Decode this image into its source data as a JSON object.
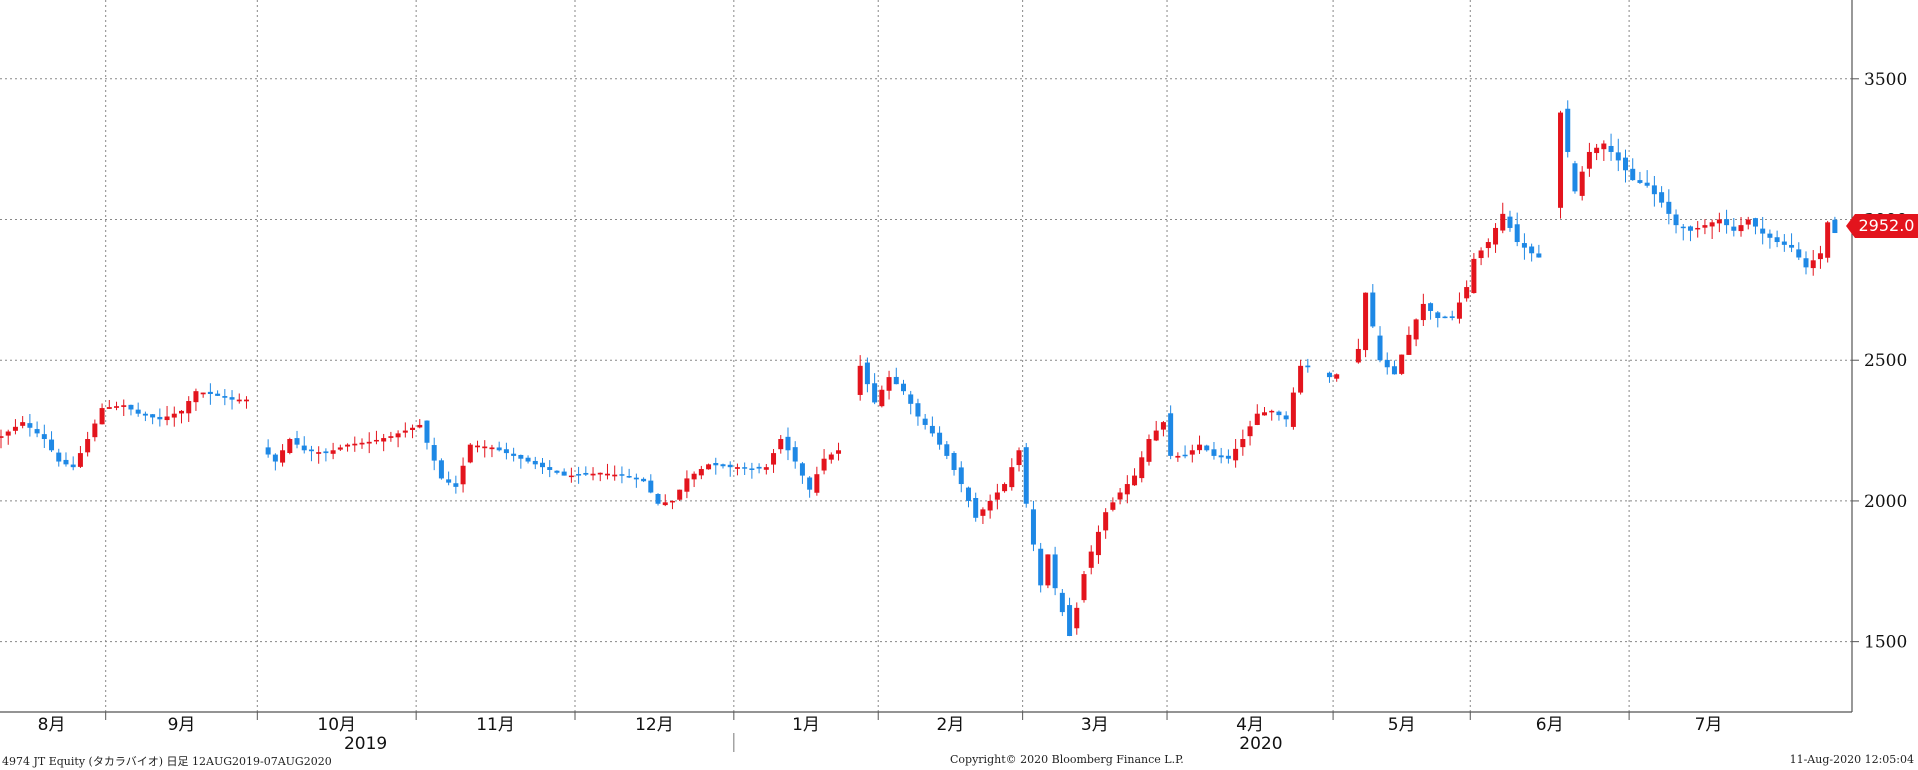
{
  "chart_data": {
    "type": "candlestick",
    "ylim": [
      1250,
      3780
    ],
    "y_ticks": [
      1500,
      2000,
      2500,
      3000,
      3500
    ],
    "x_month_labels": [
      "8月",
      "9月",
      "10月",
      "11月",
      "12月",
      "1月",
      "2月",
      "3月",
      "4月",
      "5月",
      "6月",
      "7月"
    ],
    "x_year_labels": [
      "2019",
      "2020"
    ],
    "last_price": "2952.0",
    "up_color": "#e3141d",
    "down_color": "#1e88e5",
    "grid": "dotted",
    "month_start_index": [
      0,
      15,
      36,
      58,
      80,
      102,
      122,
      142,
      162,
      185,
      204,
      226,
      248
    ],
    "anchor_closes": [
      [
        0,
        2230
      ],
      [
        3,
        2280
      ],
      [
        6,
        2220
      ],
      [
        8,
        2140
      ],
      [
        10,
        2120
      ],
      [
        12,
        2220
      ],
      [
        14,
        2330
      ],
      [
        17,
        2340
      ],
      [
        19,
        2310
      ],
      [
        22,
        2290
      ],
      [
        25,
        2320
      ],
      [
        27,
        2390
      ],
      [
        29,
        2380
      ],
      [
        32,
        2360
      ],
      [
        34,
        2360
      ],
      [
        36,
        2190
      ],
      [
        38,
        2140
      ],
      [
        40,
        2220
      ],
      [
        42,
        2180
      ],
      [
        45,
        2170
      ],
      [
        48,
        2200
      ],
      [
        51,
        2210
      ],
      [
        54,
        2230
      ],
      [
        57,
        2260
      ],
      [
        58,
        2270
      ],
      [
        61,
        2080
      ],
      [
        63,
        2050
      ],
      [
        65,
        2200
      ],
      [
        68,
        2190
      ],
      [
        71,
        2160
      ],
      [
        74,
        2130
      ],
      [
        76,
        2110
      ],
      [
        78,
        2090
      ],
      [
        80,
        2090
      ],
      [
        83,
        2100
      ],
      [
        86,
        2090
      ],
      [
        89,
        2070
      ],
      [
        91,
        1990
      ],
      [
        93,
        2000
      ],
      [
        95,
        2080
      ],
      [
        98,
        2130
      ],
      [
        101,
        2120
      ],
      [
        102,
        2120
      ],
      [
        104,
        2110
      ],
      [
        106,
        2120
      ],
      [
        108,
        2220
      ],
      [
        110,
        2140
      ],
      [
        112,
        2040
      ],
      [
        114,
        2150
      ],
      [
        116,
        2180
      ],
      [
        119,
        2480
      ],
      [
        121,
        2350
      ],
      [
        123,
        2440
      ],
      [
        125,
        2390
      ],
      [
        127,
        2300
      ],
      [
        129,
        2240
      ],
      [
        131,
        2160
      ],
      [
        133,
        2060
      ],
      [
        135,
        1940
      ],
      [
        137,
        2000
      ],
      [
        139,
        2060
      ],
      [
        141,
        2180
      ],
      [
        142,
        1990
      ],
      [
        144,
        1700
      ],
      [
        145,
        1810
      ],
      [
        146,
        1690
      ],
      [
        148,
        1520
      ],
      [
        149,
        1620
      ],
      [
        150,
        1740
      ],
      [
        151,
        1820
      ],
      [
        153,
        1960
      ],
      [
        155,
        2030
      ],
      [
        157,
        2090
      ],
      [
        159,
        2220
      ],
      [
        161,
        2280
      ],
      [
        162,
        2160
      ],
      [
        164,
        2160
      ],
      [
        166,
        2200
      ],
      [
        168,
        2160
      ],
      [
        170,
        2150
      ],
      [
        172,
        2220
      ],
      [
        174,
        2310
      ],
      [
        176,
        2320
      ],
      [
        178,
        2290
      ],
      [
        180,
        2480
      ],
      [
        182,
        2470
      ],
      [
        184,
        2440
      ],
      [
        186,
        2460
      ],
      [
        188,
        2540
      ],
      [
        189,
        2740
      ],
      [
        191,
        2500
      ],
      [
        193,
        2450
      ],
      [
        195,
        2590
      ],
      [
        197,
        2700
      ],
      [
        199,
        2650
      ],
      [
        201,
        2650
      ],
      [
        203,
        2760
      ],
      [
        204,
        2860
      ],
      [
        206,
        2920
      ],
      [
        208,
        3020
      ],
      [
        210,
        2920
      ],
      [
        212,
        2880
      ],
      [
        214,
        2850
      ],
      [
        216,
        3380
      ],
      [
        218,
        3100
      ],
      [
        220,
        3240
      ],
      [
        222,
        3270
      ],
      [
        224,
        3210
      ],
      [
        226,
        3140
      ],
      [
        228,
        3120
      ],
      [
        230,
        3060
      ],
      [
        232,
        2980
      ],
      [
        234,
        2960
      ],
      [
        236,
        2980
      ],
      [
        238,
        3000
      ],
      [
        240,
        2960
      ],
      [
        242,
        3000
      ],
      [
        244,
        2950
      ],
      [
        246,
        2920
      ],
      [
        248,
        2900
      ],
      [
        250,
        2830
      ],
      [
        252,
        2880
      ],
      [
        253,
        2990
      ],
      [
        254,
        2952
      ]
    ],
    "gaps": [
      [
        35,
        36
      ],
      [
        117,
        118
      ],
      [
        182,
        183
      ],
      [
        186,
        187
      ],
      [
        214,
        215
      ]
    ]
  },
  "footer": {
    "left": "4974 JT Equity (タカラバイオ)  日足 12AUG2019-07AUG2020",
    "center": "Copyright© 2020 Bloomberg Finance L.P.",
    "right": "11-Aug-2020 12:05:04"
  }
}
